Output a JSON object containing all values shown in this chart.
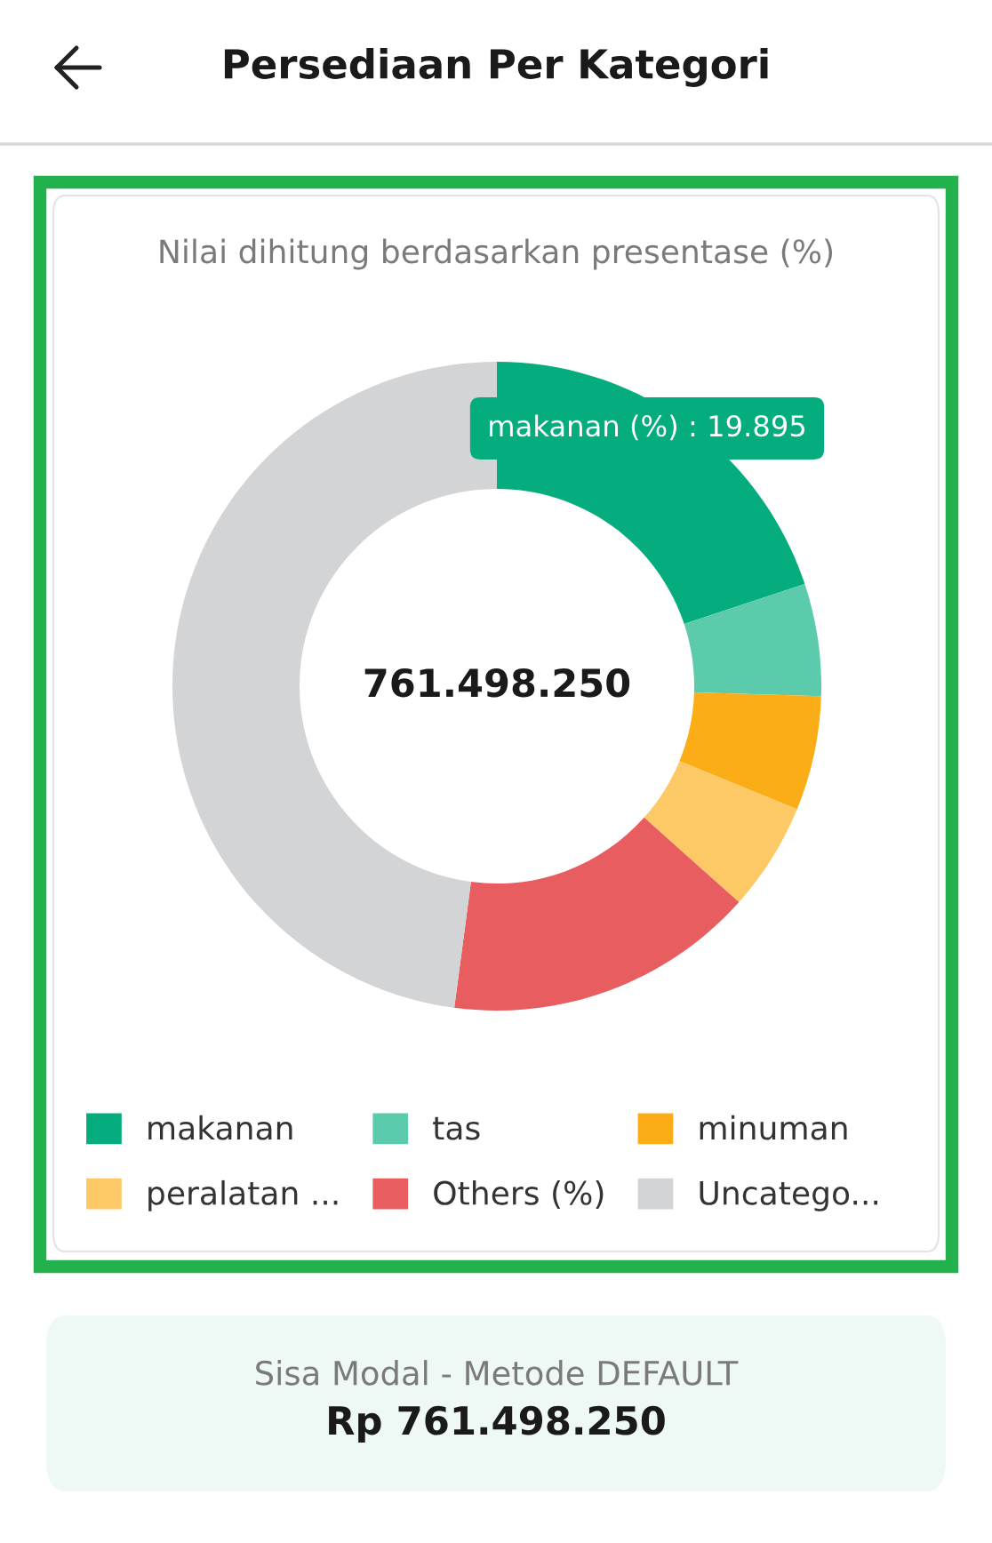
{
  "chart_data": {
    "type": "donut",
    "title": "Persediaan Per Kategori",
    "subtitle": "Nilai dihitung berdasarkan presentase (%)",
    "categories": [
      "makanan",
      "tas",
      "minuman",
      "peralatan ...",
      "Others (%)",
      "Uncatego..."
    ],
    "values": [
      19.895,
      5.6,
      5.7,
      5.4,
      15.5,
      47.905
    ],
    "colors": [
      "#05ad7e",
      "#5ccbab",
      "#fbad18",
      "#fdc866",
      "#e85d5f",
      "#d3d4d6"
    ],
    "annotations": [
      "makanan (%) : 19.895",
      "761.498.250",
      "Sisa Modal - Metode DEFAULT",
      "Rp 761.498.250"
    ],
    "legend": "bottom"
  }
}
